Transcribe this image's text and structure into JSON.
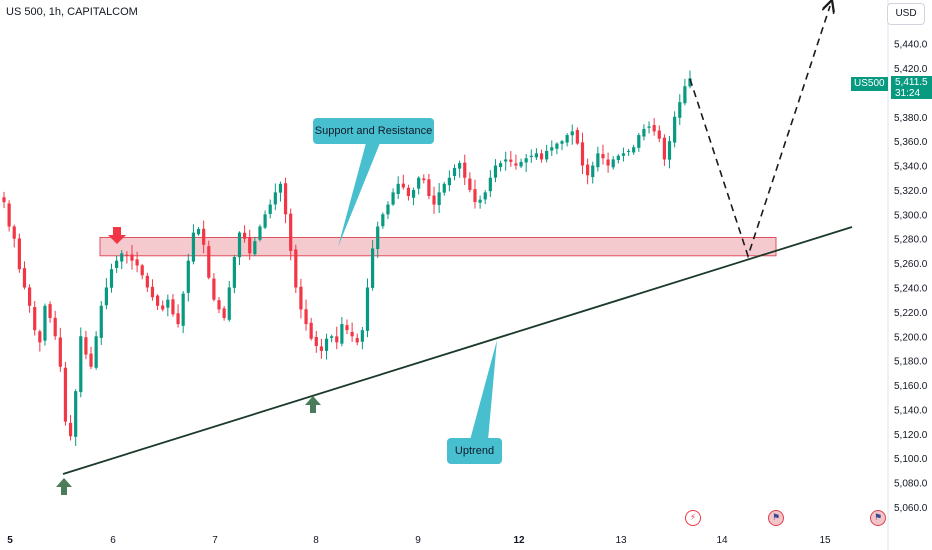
{
  "header": {
    "symbol_title": "US 500, 1h, CAPITALCOM",
    "currency": "USD"
  },
  "price_label": {
    "symbol": "US500",
    "price": "5,411.5",
    "countdown": "31:24"
  },
  "annotations": {
    "support_resistance": "Support and Resistance",
    "uptrend": "Uptrend"
  },
  "colors": {
    "bull": "#089981",
    "bear": "#f23645",
    "callout": "#47bfce",
    "zone_fill": "#f2b8bd",
    "zone_border": "#e0505e",
    "trendline": "#1a3a2a",
    "arrow_up": "#4a7c59",
    "arrow_down": "#f23645"
  },
  "event_icons": [
    "flash-icon",
    "flag-us-icon",
    "flag-us-icon"
  ],
  "chart_data": {
    "type": "candlestick",
    "title": "US 500, 1h, CAPITALCOM",
    "y_ticks": [
      5060,
      5080,
      5100,
      5120,
      5140,
      5160,
      5180,
      5200,
      5220,
      5240,
      5260,
      5280,
      5300,
      5320,
      5340,
      5360,
      5380,
      5400,
      5420,
      5440
    ],
    "y_tick_labels": [
      "5,060.0",
      "5,080.0",
      "5,100.0",
      "5,120.0",
      "5,140.0",
      "5,160.0",
      "5,180.0",
      "5,200.0",
      "5,220.0",
      "5,240.0",
      "5,260.0",
      "5,280.0",
      "5,300.0",
      "5,320.0",
      "5,340.0",
      "5,360.0",
      "5,380.0",
      "5,400.0",
      "5,420.0",
      "5,440.0"
    ],
    "ylim": [
      5048,
      5475
    ],
    "x_ticks": [
      {
        "label": "5",
        "bold": true
      },
      {
        "label": "6",
        "bold": false
      },
      {
        "label": "7",
        "bold": false
      },
      {
        "label": "8",
        "bold": false
      },
      {
        "label": "9",
        "bold": false
      },
      {
        "label": "12",
        "bold": true
      },
      {
        "label": "13",
        "bold": false
      },
      {
        "label": "14",
        "bold": false
      },
      {
        "label": "15",
        "bold": false
      }
    ],
    "last_price": 5411.5,
    "support_zone": [
      5266,
      5281
    ],
    "trendline": {
      "start": {
        "bar": 0.0,
        "price": 5094
      },
      "end": {
        "bar": 0.0,
        "price": 5292
      }
    },
    "ohlc_anchor_closes": [
      5310,
      5290,
      5280,
      5255,
      5240,
      5225,
      5205,
      5195,
      5225,
      5215,
      5200,
      5175,
      5130,
      5118,
      5155,
      5200,
      5185,
      5175,
      5200,
      5225,
      5240,
      5255,
      5262,
      5268,
      5266,
      5262,
      5258,
      5250,
      5240,
      5232,
      5225,
      5222,
      5230,
      5218,
      5210,
      5235,
      5262,
      5285,
      5288,
      5275,
      5248,
      5230,
      5222,
      5215,
      5240,
      5265,
      5285,
      5280,
      5268,
      5278,
      5290,
      5300,
      5308,
      5318,
      5325,
      5300,
      5270,
      5240,
      5222,
      5210,
      5198,
      5192,
      5188,
      5198,
      5200,
      5195,
      5210,
      5205,
      5200,
      5195,
      5205,
      5240,
      5272,
      5290,
      5300,
      5308,
      5318,
      5325,
      5322,
      5315,
      5320,
      5330,
      5328,
      5315,
      5308,
      5318,
      5325,
      5330,
      5338,
      5342,
      5330,
      5320,
      5310,
      5312,
      5318,
      5330,
      5340,
      5342,
      5345,
      5343,
      5340,
      5343,
      5346,
      5348,
      5350,
      5345,
      5352,
      5355,
      5358,
      5360,
      5365,
      5368,
      5358,
      5340,
      5332,
      5340,
      5350,
      5346,
      5340,
      5345,
      5348,
      5350,
      5352,
      5355,
      5365,
      5370,
      5372,
      5368,
      5362,
      5345,
      5360,
      5380,
      5392,
      5405,
      5411.5
    ]
  }
}
